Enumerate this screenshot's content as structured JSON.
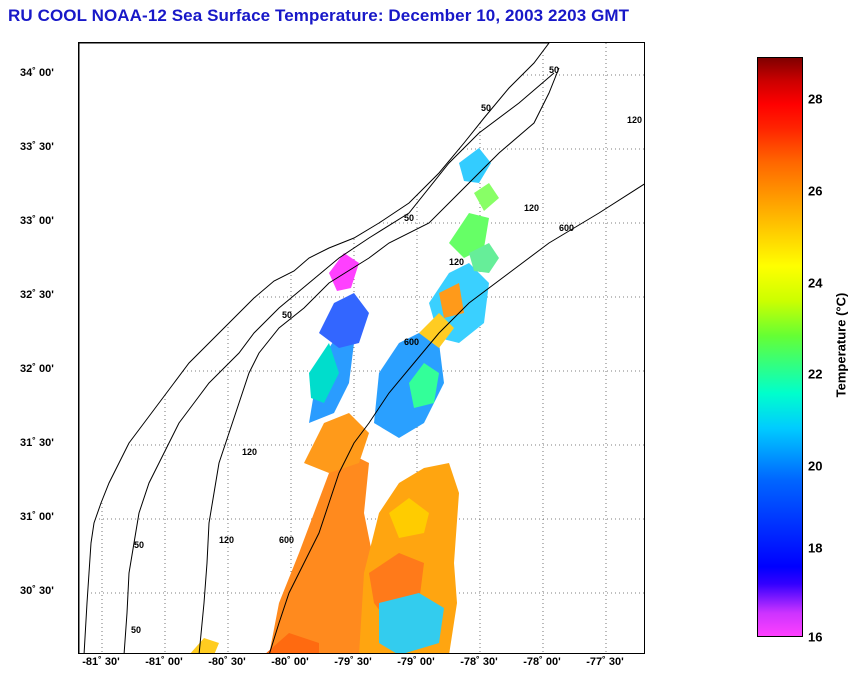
{
  "title": "RU COOL  NOAA-12  Sea Surface Temperature:  December 10, 2003 2203 GMT",
  "map": {
    "y_labels": [
      "34˚ 00'",
      "33˚ 30'",
      "33˚ 00'",
      "32˚ 30'",
      "32˚ 00'",
      "31˚ 30'",
      "31˚ 00'",
      "30˚ 30'"
    ],
    "x_labels": [
      "-81˚ 30'",
      "-81˚ 00'",
      "-80˚ 30'",
      "-80˚ 00'",
      "-79˚ 30'",
      "-79˚ 00'",
      "-78˚ 30'",
      "-78˚ 00'",
      "-77˚ 30'"
    ],
    "contour_labels": [
      "50",
      "50",
      "50",
      "50",
      "120",
      "120",
      "120",
      "120",
      "120",
      "600",
      "600",
      "600",
      "50",
      "50"
    ]
  },
  "colorbar": {
    "ticks": [
      "28",
      "26",
      "24",
      "22",
      "20",
      "18",
      "16"
    ],
    "label": "Temperature (°C)",
    "colors": {
      "max": "#800000",
      "min": "#ff40ff"
    }
  }
}
